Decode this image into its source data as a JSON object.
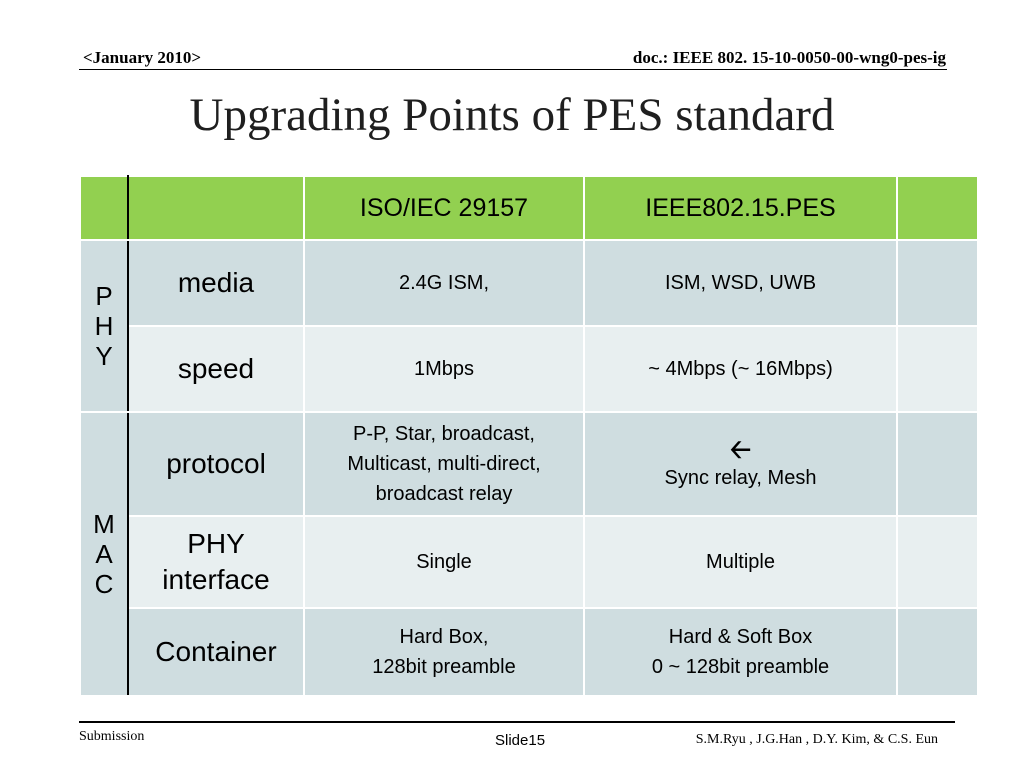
{
  "header": {
    "date": "<January 2010>",
    "doc": "doc.: IEEE 802. 15-10-0050-00-wng0-pes-ig"
  },
  "title": "Upgrading Points of PES standard",
  "table": {
    "columns": [
      "",
      "",
      "ISO/IEC 29157",
      "IEEE802.15.PES",
      ""
    ],
    "groups": {
      "phy": [
        "P",
        "H",
        "Y"
      ],
      "mac": [
        "M",
        "A",
        "C"
      ]
    },
    "rows": [
      {
        "param": "media",
        "iso": "2.4G ISM,",
        "pes": "ISM, WSD, UWB"
      },
      {
        "param": "speed",
        "iso": "1Mbps",
        "pes": "~ 4Mbps (~ 16Mbps)"
      },
      {
        "param": "protocol",
        "iso": [
          "P-P, Star, broadcast,",
          "Multicast, multi-direct,",
          "broadcast relay"
        ],
        "pes_icon": "left-arrow-icon",
        "pes": "Sync relay,  Mesh"
      },
      {
        "param": [
          "PHY",
          "interface"
        ],
        "iso": "Single",
        "pes": "Multiple"
      },
      {
        "param": "Container",
        "iso": [
          "Hard Box,",
          "128bit preamble"
        ],
        "pes": [
          "Hard & Soft Box",
          "0 ~ 128bit preamble"
        ]
      }
    ]
  },
  "colors": {
    "header_row": "#92d050",
    "row_dark": "#cfdde0",
    "row_light": "#e8eff0"
  },
  "footer": {
    "left": "Submission",
    "slide": "Slide15",
    "authors": "S.M.Ryu , J.G.Han , D.Y. Kim, & C.S. Eun"
  }
}
